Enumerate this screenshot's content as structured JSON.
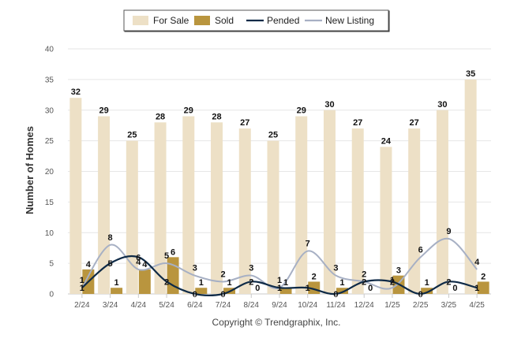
{
  "chart_data": {
    "type": "bar",
    "xlabel": "",
    "ylabel": "Number of Homes",
    "ylim": [
      0,
      40
    ],
    "yticks": [
      0,
      5,
      10,
      15,
      20,
      25,
      30,
      35,
      40
    ],
    "grid": true,
    "legend_position": "top-center",
    "categories": [
      "2/24",
      "3/24",
      "4/24",
      "5/24",
      "6/24",
      "7/24",
      "8/24",
      "9/24",
      "10/24",
      "11/24",
      "12/24",
      "1/25",
      "2/25",
      "3/25",
      "4/25"
    ],
    "series": [
      {
        "name": "For Sale",
        "kind": "bar",
        "color": "#ede0c6",
        "values": [
          32,
          29,
          25,
          28,
          29,
          28,
          27,
          25,
          29,
          30,
          27,
          24,
          27,
          30,
          35
        ]
      },
      {
        "name": "Sold",
        "kind": "bar",
        "color": "#b9953e",
        "values": [
          4,
          1,
          4,
          6,
          1,
          1,
          0,
          1,
          2,
          1,
          0,
          3,
          1,
          0,
          2
        ]
      },
      {
        "name": "Pended",
        "kind": "line",
        "color": "#0e2a47",
        "values": [
          1,
          5,
          6,
          2,
          0,
          0,
          2,
          1,
          1,
          0,
          2,
          2,
          0,
          2,
          1
        ]
      },
      {
        "name": "New Listing",
        "kind": "line",
        "color": "#a7b0c4",
        "values": [
          1,
          8,
          4,
          5,
          3,
          2,
          3,
          1,
          7,
          3,
          2,
          1,
          6,
          9,
          4
        ]
      }
    ]
  },
  "footer": {
    "credit": "Copyright © Trendgraphix, Inc."
  }
}
